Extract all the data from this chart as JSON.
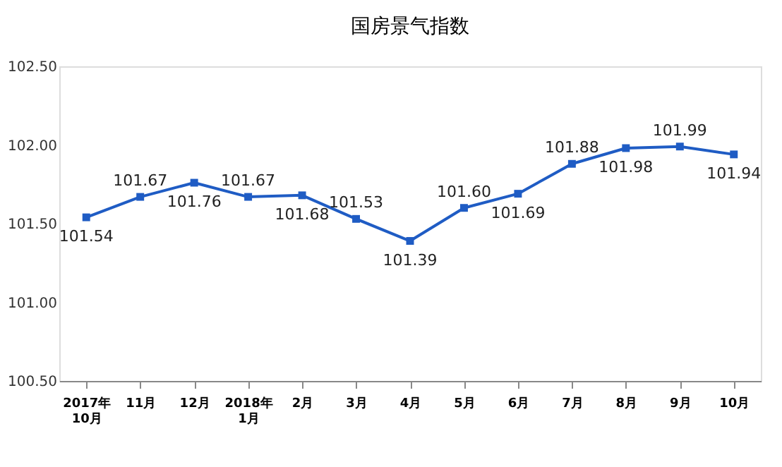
{
  "chart_data": {
    "type": "line",
    "title": "国房景气指数",
    "categories": [
      "2017年\n10月",
      "11月",
      "12月",
      "2018年\n1月",
      "2月",
      "3月",
      "4月",
      "5月",
      "6月",
      "7月",
      "8月",
      "9月",
      "10月"
    ],
    "series": [
      {
        "color": "#1f5cc4",
        "values": [
          101.54,
          101.67,
          101.76,
          101.67,
          101.68,
          101.53,
          101.39,
          101.6,
          101.69,
          101.88,
          101.98,
          101.99,
          101.94
        ]
      }
    ],
    "ylim": [
      100.5,
      102.5
    ],
    "yticks": [
      {
        "value": 100.5,
        "label": "100.50"
      },
      {
        "value": 101,
        "label": "101.00"
      },
      {
        "value": 101.5,
        "label": "101.50"
      },
      {
        "value": 102,
        "label": "102.00"
      },
      {
        "value": 102.5,
        "label": "102.50"
      }
    ],
    "value_labels": [
      "101.54",
      "101.67",
      "101.76",
      "101.67",
      "101.68",
      "101.53",
      "101.39",
      "101.60",
      "101.69",
      "101.88",
      "101.98",
      "101.99",
      "101.94"
    ],
    "grid": false,
    "marker": "square",
    "line_style": "solid"
  }
}
